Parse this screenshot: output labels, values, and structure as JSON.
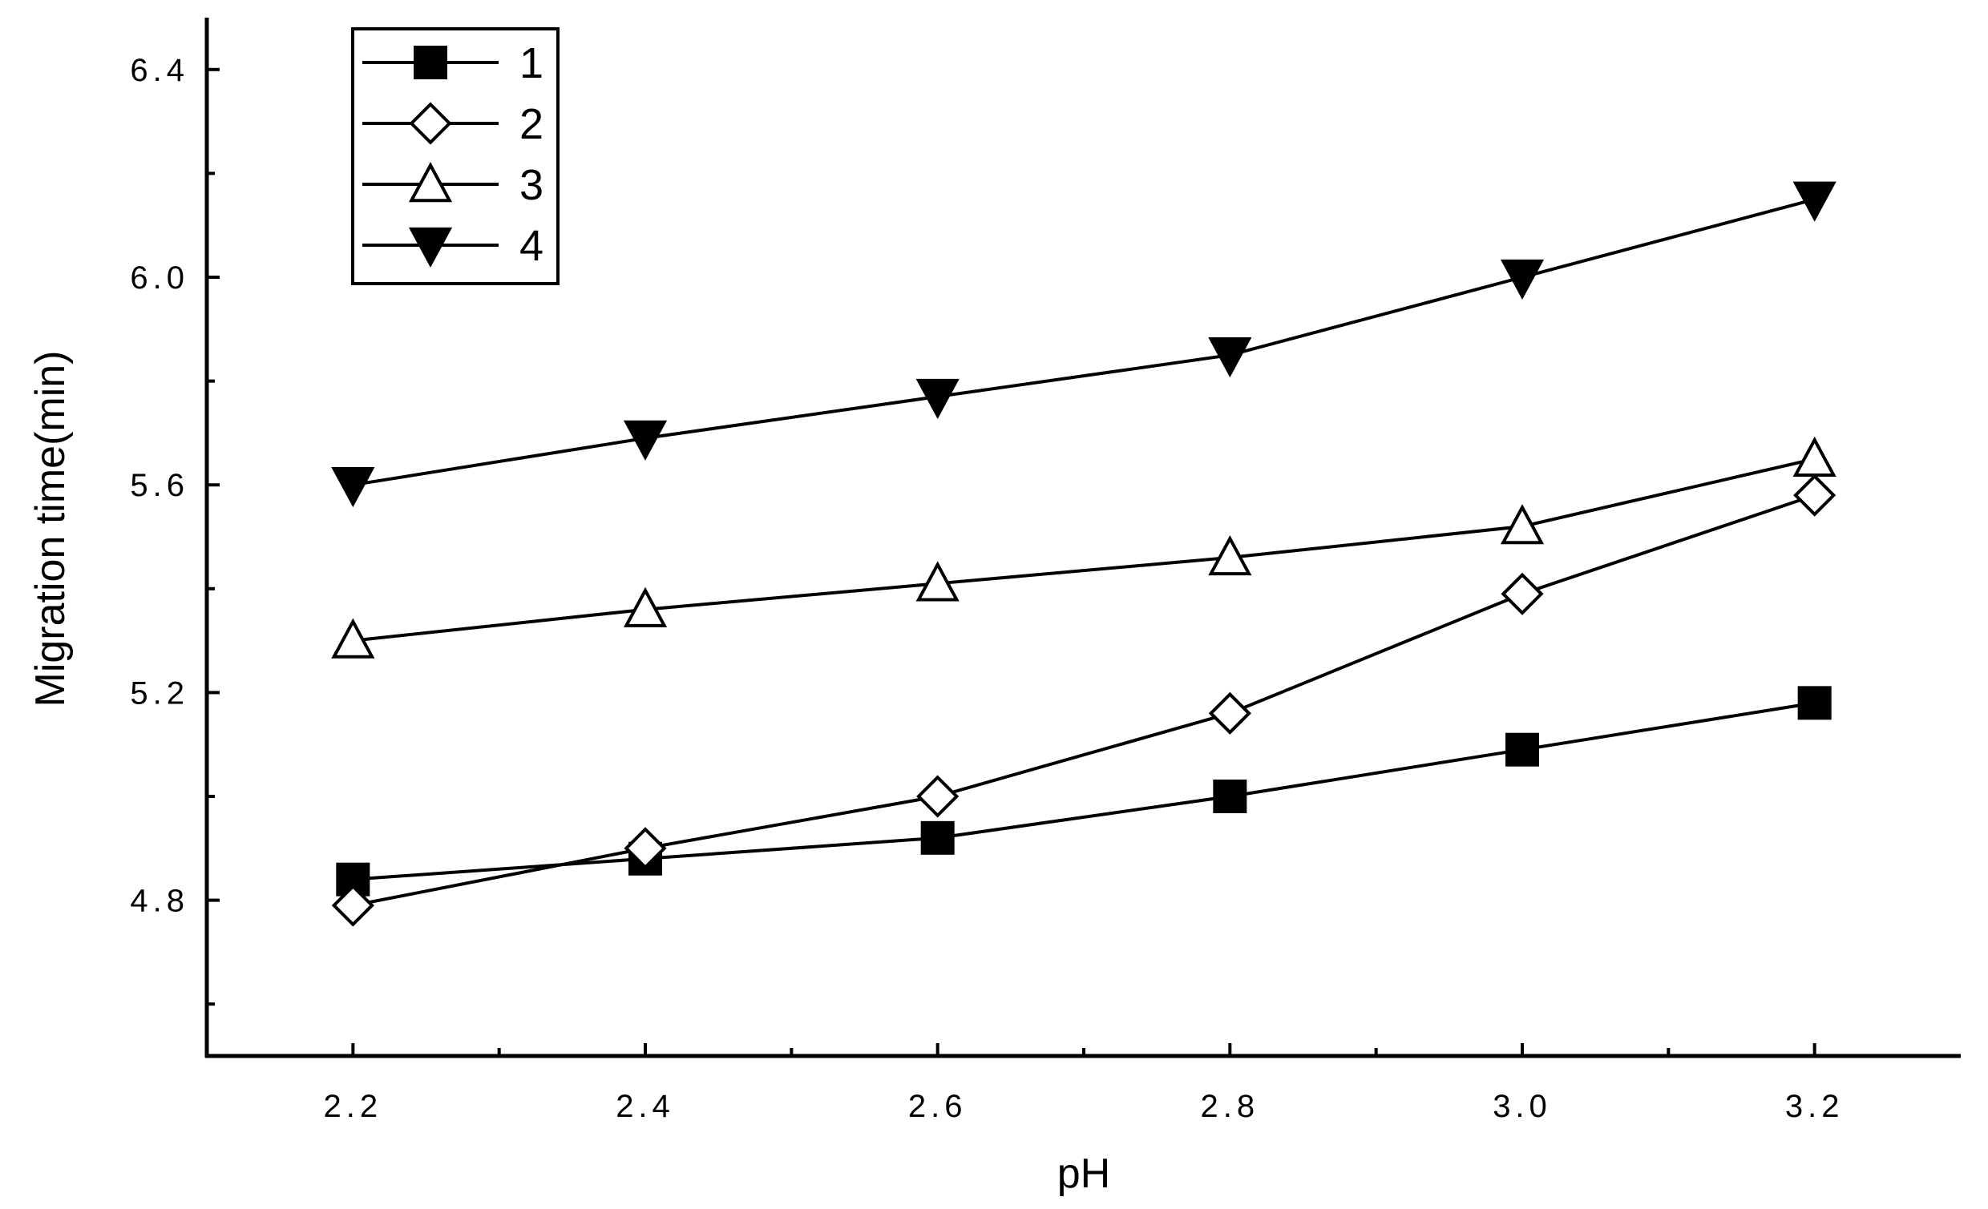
{
  "chart_data": {
    "type": "line",
    "xlabel": "pH",
    "ylabel": "Migration time(min)",
    "xlim": [
      2.1,
      3.3
    ],
    "ylim": [
      4.5,
      6.5
    ],
    "x": [
      2.2,
      2.4,
      2.6,
      2.8,
      3.0,
      3.2
    ],
    "x_ticks": [
      "2.2",
      "2.4",
      "2.6",
      "2.8",
      "3.0",
      "3.2"
    ],
    "y_ticks": [
      {
        "value": 4.8,
        "label": "4.8"
      },
      {
        "value": 5.2,
        "label": "5.2"
      },
      {
        "value": 5.6,
        "label": "5.6"
      },
      {
        "value": 6.0,
        "label": "6.0"
      },
      {
        "value": 6.4,
        "label": "6.4"
      }
    ],
    "grid": false,
    "legend_position": "top-left",
    "series": [
      {
        "name": "1",
        "marker": "filled-square",
        "values": [
          4.84,
          4.88,
          4.92,
          5.0,
          5.09,
          5.18
        ]
      },
      {
        "name": "2",
        "marker": "open-diamond",
        "values": [
          4.79,
          4.9,
          5.0,
          5.16,
          5.39,
          5.58
        ]
      },
      {
        "name": "3",
        "marker": "open-triangle-up",
        "values": [
          5.3,
          5.36,
          5.41,
          5.46,
          5.52,
          5.65
        ]
      },
      {
        "name": "4",
        "marker": "filled-triangle-down",
        "values": [
          5.6,
          5.69,
          5.77,
          5.85,
          6.0,
          6.15
        ]
      }
    ]
  }
}
